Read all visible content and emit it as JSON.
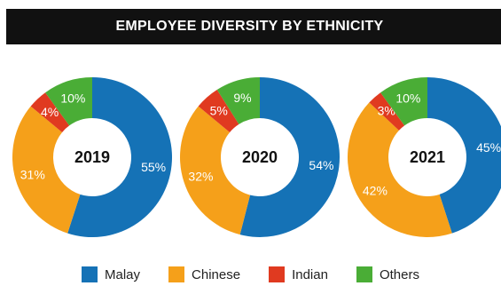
{
  "title": "EMPLOYEE DIVERSITY BY ETHNICITY",
  "colors": {
    "Malay": "#1572b6",
    "Chinese": "#f5a01a",
    "Indian": "#e03a20",
    "Others": "#4aad36"
  },
  "chart_data": [
    {
      "type": "pie",
      "variant": "donut",
      "center_label": "2019",
      "categories": [
        "Malay",
        "Chinese",
        "Indian",
        "Others"
      ],
      "values": [
        55,
        31,
        4,
        10
      ],
      "labels": [
        "55%",
        "31%",
        "4%",
        "10%"
      ]
    },
    {
      "type": "pie",
      "variant": "donut",
      "center_label": "2020",
      "categories": [
        "Malay",
        "Chinese",
        "Indian",
        "Others"
      ],
      "values": [
        54,
        32,
        5,
        9
      ],
      "labels": [
        "54%",
        "32%",
        "5%",
        "9%"
      ]
    },
    {
      "type": "pie",
      "variant": "donut",
      "center_label": "2021",
      "categories": [
        "Malay",
        "Chinese",
        "Indian",
        "Others"
      ],
      "values": [
        45,
        42,
        3,
        10
      ],
      "labels": [
        "45%",
        "42%",
        "3%",
        "10%"
      ]
    }
  ],
  "legend": [
    {
      "label": "Malay",
      "color": "#1572b6"
    },
    {
      "label": "Chinese",
      "color": "#f5a01a"
    },
    {
      "label": "Indian",
      "color": "#e03a20"
    },
    {
      "label": "Others",
      "color": "#4aad36"
    }
  ]
}
